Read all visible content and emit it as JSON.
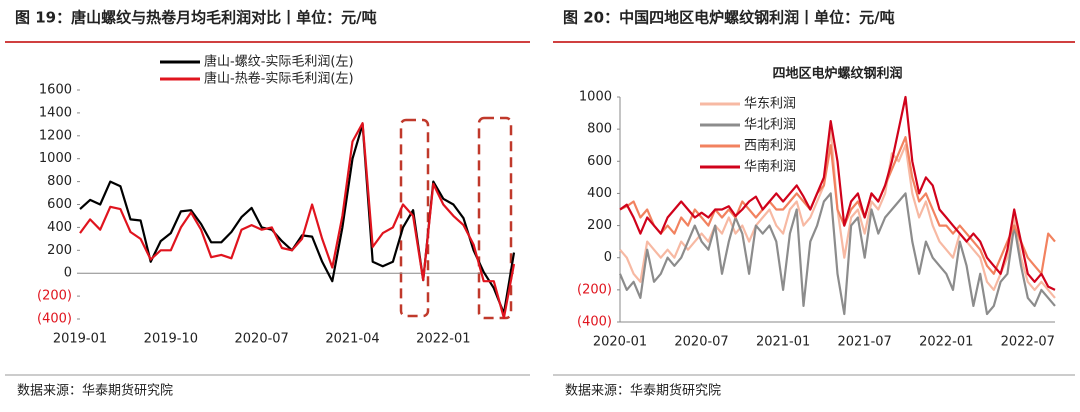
{
  "chart_data": [
    {
      "type": "line",
      "title": "图 19：唐山螺纹与热卷月均毛利润对比丨单位：元/吨",
      "source": "数据来源：华泰期货研究院",
      "categories": [
        "2019-01",
        null,
        null,
        null,
        null,
        null,
        null,
        null,
        null,
        "2019-10",
        null,
        null,
        null,
        null,
        null,
        null,
        null,
        null,
        "2020-07",
        null,
        null,
        null,
        null,
        null,
        null,
        null,
        null,
        "2021-04",
        null,
        null,
        null,
        null,
        null,
        null,
        null,
        null,
        "2022-01",
        null,
        null,
        null,
        null,
        null,
        null,
        null
      ],
      "series": [
        {
          "name": "唐山-螺纹-实际毛利润(左)",
          "color": "#000000",
          "values": [
            560,
            640,
            600,
            800,
            760,
            470,
            460,
            100,
            280,
            350,
            540,
            550,
            430,
            270,
            270,
            360,
            490,
            570,
            400,
            380,
            280,
            200,
            330,
            320,
            100,
            -70,
            400,
            1000,
            1300,
            100,
            60,
            100,
            400,
            550,
            -60,
            800,
            650,
            600,
            480,
            200,
            10,
            -130,
            -350,
            180
          ]
        },
        {
          "name": "唐山-热卷-实际毛利润(左)",
          "color": "#e0141e",
          "values": [
            350,
            470,
            380,
            580,
            560,
            360,
            300,
            120,
            200,
            200,
            400,
            530,
            380,
            140,
            160,
            130,
            380,
            420,
            380,
            400,
            220,
            200,
            300,
            600,
            300,
            50,
            500,
            1150,
            1310,
            230,
            350,
            400,
            600,
            500,
            -60,
            780,
            600,
            500,
            420,
            250,
            -70,
            -70,
            -390,
            80
          ]
        }
      ],
      "ylim": [
        -400,
        1600
      ],
      "yticks": [
        {
          "value": -400,
          "label": "(400)"
        },
        {
          "value": -200,
          "label": "(200)"
        },
        0,
        200,
        400,
        600,
        800,
        1000,
        1200,
        1400,
        1600
      ],
      "legend": "top"
    },
    {
      "type": "line",
      "title": "图 20：中国四地区电炉螺纹钢利润丨单位：元/吨",
      "subtitle": "四地区电炉螺纹钢利润",
      "source": "数据来源：华泰期货研究院",
      "categories": [
        "2020-01",
        null,
        null,
        null,
        null,
        null,
        null,
        null,
        null,
        null,
        null,
        null,
        "2020-07",
        null,
        null,
        null,
        null,
        null,
        null,
        null,
        null,
        null,
        null,
        null,
        "2021-01",
        null,
        null,
        null,
        null,
        null,
        null,
        null,
        null,
        null,
        null,
        null,
        "2021-07",
        null,
        null,
        null,
        null,
        null,
        null,
        null,
        null,
        null,
        null,
        null,
        "2022-01",
        null,
        null,
        null,
        null,
        null,
        null,
        null,
        null,
        null,
        null,
        null,
        "2022-07",
        null,
        null,
        null,
        null
      ],
      "series": [
        {
          "name": "华东利润",
          "color": "#f7b9a3",
          "values": [
            50,
            0,
            -100,
            -150,
            100,
            50,
            0,
            50,
            0,
            100,
            50,
            100,
            150,
            100,
            200,
            150,
            250,
            150,
            200,
            100,
            200,
            250,
            300,
            200,
            150,
            300,
            350,
            200,
            250,
            350,
            450,
            800,
            300,
            0,
            250,
            300,
            150,
            350,
            300,
            400,
            650,
            600,
            700,
            400,
            250,
            350,
            200,
            100,
            50,
            0,
            150,
            100,
            50,
            0,
            -150,
            -200,
            -100,
            0,
            250,
            0,
            -150,
            -200,
            -150,
            -200,
            -250
          ]
        },
        {
          "name": "华北利润",
          "color": "#8c8c8c",
          "values": [
            -100,
            -200,
            -150,
            -250,
            50,
            -150,
            -100,
            0,
            -50,
            0,
            100,
            200,
            100,
            50,
            200,
            -100,
            100,
            250,
            150,
            -100,
            200,
            150,
            200,
            100,
            -200,
            150,
            300,
            -300,
            100,
            200,
            350,
            400,
            -100,
            -350,
            200,
            250,
            0,
            300,
            150,
            250,
            300,
            350,
            400,
            100,
            -100,
            100,
            0,
            -50,
            -100,
            -200,
            100,
            -50,
            -300,
            -100,
            -350,
            -300,
            -150,
            -100,
            200,
            -50,
            -250,
            -300,
            -200,
            -250,
            -300
          ]
        },
        {
          "name": "西南利润",
          "color": "#f2825f",
          "values": [
            300,
            320,
            350,
            250,
            300,
            200,
            150,
            200,
            150,
            250,
            200,
            300,
            250,
            200,
            300,
            250,
            300,
            250,
            350,
            300,
            250,
            300,
            350,
            300,
            300,
            350,
            400,
            350,
            300,
            400,
            450,
            700,
            300,
            200,
            300,
            350,
            250,
            400,
            350,
            450,
            550,
            650,
            750,
            500,
            350,
            400,
            300,
            200,
            200,
            150,
            200,
            150,
            100,
            50,
            -50,
            -100,
            0,
            100,
            200,
            100,
            0,
            -50,
            -100,
            150,
            100
          ]
        },
        {
          "name": "华南利润",
          "color": "#d0021b",
          "values": [
            300,
            330,
            250,
            150,
            250,
            200,
            150,
            250,
            300,
            350,
            300,
            250,
            280,
            250,
            300,
            300,
            320,
            260,
            300,
            350,
            380,
            300,
            350,
            400,
            350,
            400,
            450,
            380,
            300,
            400,
            500,
            850,
            600,
            200,
            350,
            400,
            250,
            400,
            350,
            450,
            600,
            800,
            1000,
            600,
            400,
            500,
            450,
            300,
            250,
            200,
            150,
            100,
            150,
            100,
            0,
            -50,
            -100,
            50,
            300,
            100,
            -100,
            -150,
            -100,
            -180,
            -200
          ]
        }
      ],
      "ylim": [
        -400,
        1000
      ],
      "yticks": [
        {
          "value": -400,
          "label": "(400)"
        },
        {
          "value": -200,
          "label": "(200)"
        },
        0,
        200,
        400,
        600,
        800,
        1000
      ],
      "legend": "upper-left"
    }
  ]
}
